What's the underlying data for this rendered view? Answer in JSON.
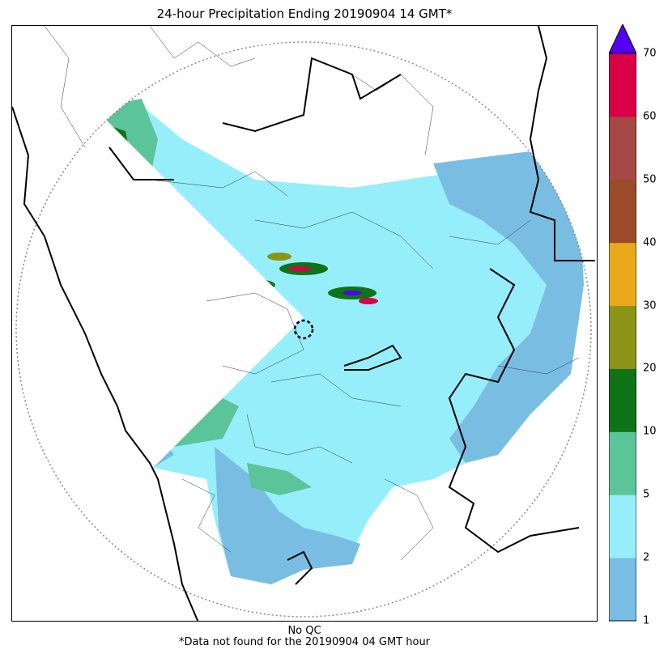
{
  "title": "24-hour Precipitation Ending 20190904 14 GMT*",
  "footer_line1": "No QC",
  "footer_line2": "*Data not found for the 20190904 04 GMT hour",
  "legend": {
    "bins": [
      {
        "from": 1,
        "to": 2,
        "color": "#79bde3"
      },
      {
        "from": 2,
        "to": 5,
        "color": "#96eefb"
      },
      {
        "from": 5,
        "to": 10,
        "color": "#5cc499"
      },
      {
        "from": 10,
        "to": 20,
        "color": "#0f7317"
      },
      {
        "from": 20,
        "to": 30,
        "color": "#8c9418"
      },
      {
        "from": 30,
        "to": 40,
        "color": "#e8a91a"
      },
      {
        "from": 40,
        "to": 50,
        "color": "#9a4c28"
      },
      {
        "from": 50,
        "to": 60,
        "color": "#a64843"
      },
      {
        "from": 60,
        "to": 70,
        "color": "#d80046"
      }
    ],
    "overflow_color": "#5200f2",
    "tick_labels": [
      "1",
      "2",
      "5",
      "10",
      "20",
      "30",
      "40",
      "50",
      "60",
      "70"
    ]
  }
}
